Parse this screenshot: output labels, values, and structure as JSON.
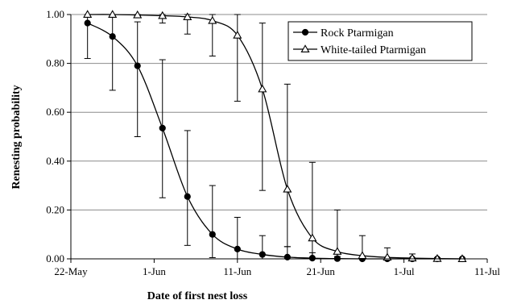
{
  "chart_data": {
    "type": "line",
    "title": "",
    "xlabel": "Date of first nest loss",
    "ylabel": "Renesting probability",
    "xlim": [
      "2000-05-22",
      "2000-07-11"
    ],
    "ylim": [
      0,
      1
    ],
    "x_ticks": [
      "22-May",
      "1-Jun",
      "11-Jun",
      "21-Jun",
      "1-Jul",
      "11-Jul"
    ],
    "y_ticks": [
      "0.00",
      "0.20",
      "0.40",
      "0.60",
      "0.80",
      "1.00"
    ],
    "grid": "horizontal",
    "legend_position": "top-right",
    "series": [
      {
        "name": "Rock Ptarmigan",
        "marker": "filled-circle",
        "color": "#000000",
        "points": [
          {
            "x": "2000-05-24",
            "y": 0.965,
            "lo": 0.82,
            "hi": 1.0
          },
          {
            "x": "2000-05-27",
            "y": 0.91,
            "lo": 0.69,
            "hi": 0.995
          },
          {
            "x": "2000-05-30",
            "y": 0.79,
            "lo": 0.5,
            "hi": 0.97
          },
          {
            "x": "2000-06-02",
            "y": 0.535,
            "lo": 0.25,
            "hi": 0.815
          },
          {
            "x": "2000-06-05",
            "y": 0.255,
            "lo": 0.055,
            "hi": 0.525
          },
          {
            "x": "2000-06-08",
            "y": 0.1,
            "lo": 0.005,
            "hi": 0.3
          },
          {
            "x": "2000-06-11",
            "y": 0.04,
            "lo": 0.0,
            "hi": 0.17
          },
          {
            "x": "2000-06-14",
            "y": 0.018,
            "lo": 0.0,
            "hi": 0.095
          },
          {
            "x": "2000-06-17",
            "y": 0.007,
            "lo": 0.0,
            "hi": 0.05
          },
          {
            "x": "2000-06-20",
            "y": 0.003,
            "lo": 0.0,
            "hi": 0.025
          },
          {
            "x": "2000-06-23",
            "y": 0.001,
            "lo": 0.0,
            "hi": 0.01
          },
          {
            "x": "2000-06-26",
            "y": 0.0,
            "lo": 0.0,
            "hi": 0.005
          },
          {
            "x": "2000-06-29",
            "y": 0.0,
            "lo": 0.0,
            "hi": 0.002
          },
          {
            "x": "2000-07-02",
            "y": 0.0,
            "lo": 0.0,
            "hi": 0.001
          },
          {
            "x": "2000-07-05",
            "y": 0.0,
            "lo": 0.0,
            "hi": 0.0
          },
          {
            "x": "2000-07-08",
            "y": 0.0,
            "lo": 0.0,
            "hi": 0.0
          }
        ]
      },
      {
        "name": "White-tailed Ptarmigan",
        "marker": "open-triangle",
        "color": "#000000",
        "points": [
          {
            "x": "2000-05-24",
            "y": 1.0,
            "lo": 1.0,
            "hi": 1.0
          },
          {
            "x": "2000-05-27",
            "y": 1.0,
            "lo": 1.0,
            "hi": 1.0
          },
          {
            "x": "2000-05-30",
            "y": 0.998,
            "lo": 0.995,
            "hi": 1.0
          },
          {
            "x": "2000-06-02",
            "y": 0.995,
            "lo": 0.965,
            "hi": 1.0
          },
          {
            "x": "2000-06-05",
            "y": 0.99,
            "lo": 0.92,
            "hi": 1.0
          },
          {
            "x": "2000-06-08",
            "y": 0.975,
            "lo": 0.83,
            "hi": 1.0
          },
          {
            "x": "2000-06-11",
            "y": 0.915,
            "lo": 0.645,
            "hi": 1.0
          },
          {
            "x": "2000-06-14",
            "y": 0.695,
            "lo": 0.28,
            "hi": 0.965
          },
          {
            "x": "2000-06-17",
            "y": 0.285,
            "lo": 0.05,
            "hi": 0.715
          },
          {
            "x": "2000-06-20",
            "y": 0.085,
            "lo": 0.0,
            "hi": 0.395
          },
          {
            "x": "2000-06-23",
            "y": 0.03,
            "lo": 0.0,
            "hi": 0.2
          },
          {
            "x": "2000-06-26",
            "y": 0.013,
            "lo": 0.0,
            "hi": 0.095
          },
          {
            "x": "2000-06-29",
            "y": 0.006,
            "lo": 0.0,
            "hi": 0.045
          },
          {
            "x": "2000-07-02",
            "y": 0.003,
            "lo": 0.0,
            "hi": 0.02
          },
          {
            "x": "2000-07-05",
            "y": 0.001,
            "lo": 0.0,
            "hi": 0.005
          },
          {
            "x": "2000-07-08",
            "y": 0.0,
            "lo": 0.0,
            "hi": 0.002
          }
        ]
      }
    ]
  }
}
